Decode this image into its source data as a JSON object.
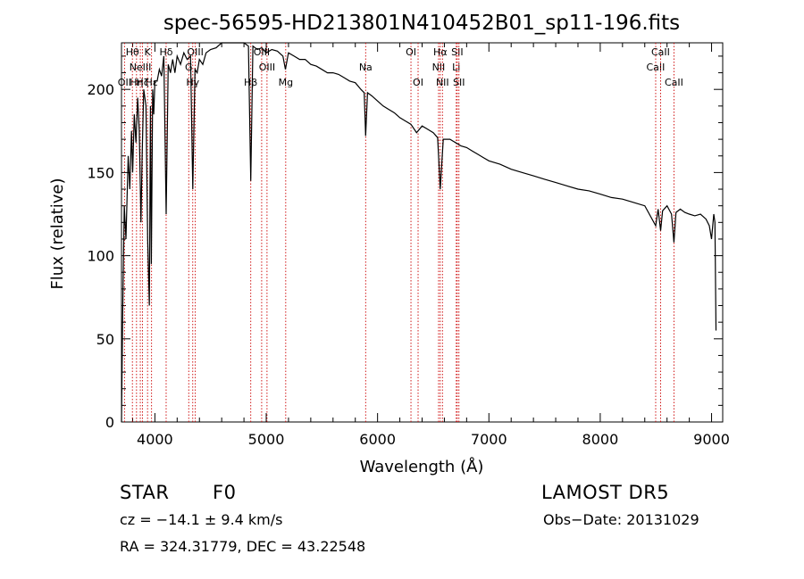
{
  "chart_data": {
    "type": "line",
    "title": "spec-56595-HD213801N410452B01_sp11-196.fits",
    "xlabel": "Wavelength (Å)",
    "ylabel": "Flux (relative)",
    "xlim": [
      3700,
      9100
    ],
    "ylim": [
      0,
      228
    ],
    "x_ticks": [
      4000,
      5000,
      6000,
      7000,
      8000,
      9000
    ],
    "y_ticks": [
      0,
      50,
      100,
      150,
      200
    ],
    "grid": false,
    "series": [
      {
        "x": [
          3700,
          3710,
          3725,
          3740,
          3760,
          3775,
          3790,
          3800,
          3815,
          3830,
          3845,
          3860,
          3875,
          3885,
          3900,
          3920,
          3935,
          3950,
          3960,
          3968,
          3980,
          3990,
          4000,
          4020,
          4040,
          4060,
          4080,
          4101,
          4120,
          4140,
          4160,
          4180,
          4200,
          4230,
          4260,
          4290,
          4320,
          4340,
          4360,
          4380,
          4400,
          4430,
          4460,
          4500,
          4550,
          4600,
          4650,
          4700,
          4750,
          4800,
          4840,
          4861,
          4880,
          4920,
          4960,
          5000,
          5050,
          5100,
          5150,
          5172,
          5200,
          5250,
          5300,
          5350,
          5400,
          5450,
          5500,
          5550,
          5600,
          5650,
          5700,
          5750,
          5800,
          5850,
          5880,
          5893,
          5910,
          5950,
          6000,
          6050,
          6100,
          6150,
          6200,
          6250,
          6300,
          6350,
          6400,
          6450,
          6500,
          6540,
          6563,
          6590,
          6620,
          6650,
          6700,
          6750,
          6800,
          6850,
          6900,
          6950,
          7000,
          7100,
          7200,
          7300,
          7400,
          7500,
          7600,
          7700,
          7800,
          7900,
          8000,
          8100,
          8200,
          8300,
          8400,
          8498,
          8520,
          8542,
          8560,
          8600,
          8640,
          8662,
          8680,
          8720,
          8760,
          8800,
          8850,
          8900,
          8950,
          8980,
          9000,
          9020,
          9030,
          9040
        ],
        "values": [
          0,
          60,
          130,
          110,
          160,
          140,
          175,
          150,
          185,
          168,
          195,
          175,
          120,
          160,
          200,
          190,
          110,
          70,
          190,
          95,
          200,
          185,
          205,
          205,
          212,
          208,
          220,
          125,
          215,
          210,
          218,
          210,
          220,
          215,
          222,
          218,
          220,
          140,
          212,
          210,
          218,
          215,
          222,
          224,
          225,
          228,
          230,
          228,
          230,
          229,
          226,
          145,
          226,
          224,
          225,
          222,
          224,
          223,
          220,
          212,
          222,
          220,
          218,
          218,
          215,
          214,
          212,
          210,
          210,
          209,
          207,
          205,
          204,
          200,
          198,
          172,
          198,
          196,
          193,
          190,
          188,
          186,
          183,
          181,
          179,
          174,
          178,
          176,
          174,
          171,
          140,
          170,
          170,
          170,
          168,
          166,
          165,
          163,
          161,
          159,
          157,
          155,
          152,
          150,
          148,
          146,
          144,
          142,
          140,
          139,
          137,
          135,
          134,
          132,
          130,
          118,
          128,
          115,
          127,
          130,
          125,
          108,
          126,
          128,
          126,
          125,
          124,
          125,
          122,
          118,
          110,
          125,
          120,
          55
        ]
      }
    ],
    "lines": [
      {
        "x": 3727,
        "label": "OII",
        "row": 2
      },
      {
        "x": 3798,
        "label": "Hθ",
        "row": 0
      },
      {
        "x": 3835,
        "label": "Hη",
        "row": 2
      },
      {
        "x": 3869,
        "label": "NeIII",
        "row": 1
      },
      {
        "x": 3889,
        "label": "Hζ",
        "row": 2
      },
      {
        "x": 3934,
        "label": "K",
        "row": 0
      },
      {
        "x": 3970,
        "label": "Hε",
        "row": 2
      },
      {
        "x": 4101,
        "label": "Hδ",
        "row": 0
      },
      {
        "x": 4304,
        "label": "G",
        "row": 1
      },
      {
        "x": 4340,
        "label": "Hγ",
        "row": 2
      },
      {
        "x": 4363,
        "label": "OIII",
        "row": 0
      },
      {
        "x": 4861,
        "label": "Hβ",
        "row": 2
      },
      {
        "x": 4959,
        "label": "OIII",
        "row": 0
      },
      {
        "x": 5007,
        "label": "OIII",
        "row": 1
      },
      {
        "x": 5175,
        "label": "Mg",
        "row": 2
      },
      {
        "x": 5893,
        "label": "Na",
        "row": 1
      },
      {
        "x": 6300,
        "label": "OI",
        "row": 0
      },
      {
        "x": 6364,
        "label": "OI",
        "row": 2
      },
      {
        "x": 6548,
        "label": "NII",
        "row": 1
      },
      {
        "x": 6563,
        "label": "Hα",
        "row": 0
      },
      {
        "x": 6583,
        "label": "NII",
        "row": 2
      },
      {
        "x": 6707,
        "label": "Li",
        "row": 1
      },
      {
        "x": 6716,
        "label": "SII",
        "row": 0
      },
      {
        "x": 6731,
        "label": "SII",
        "row": 2
      },
      {
        "x": 8498,
        "label": "CaII",
        "row": 1
      },
      {
        "x": 8542,
        "label": "CaII",
        "row": 0
      },
      {
        "x": 8662,
        "label": "CaII",
        "row": 2
      }
    ]
  },
  "info": {
    "class_label": "STAR",
    "subclass": "F0",
    "survey": "LAMOST DR5",
    "cz": "cz = −14.1 ± 9.4 km/s",
    "obs_date": "Obs−Date: 20131029",
    "coords": "RA = 324.31779, DEC =  43.22548"
  }
}
